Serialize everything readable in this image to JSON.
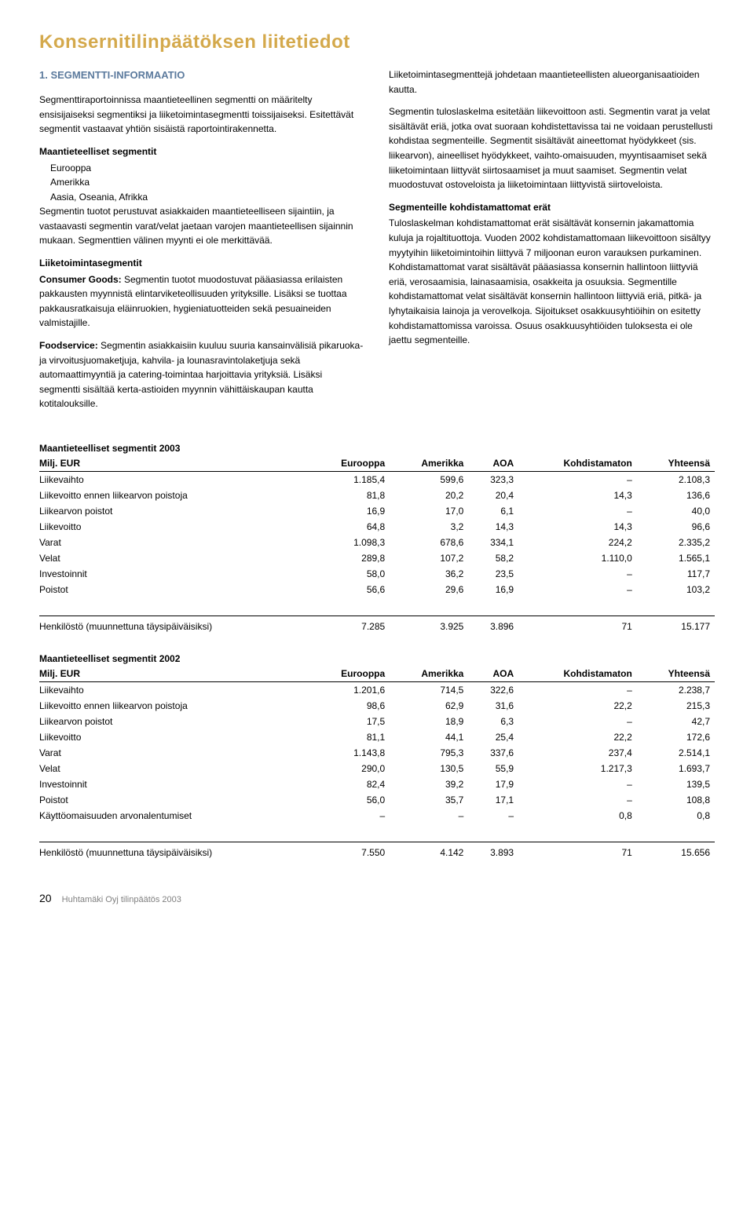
{
  "page_title": "Konsernitilinpäätöksen liitetiedot",
  "section_title": "1. SEGMENTTI-INFORMAATIO",
  "left": {
    "p1": "Segmenttiraportoinnissa maantieteellinen segmentti on määritelty ensisijaiseksi segmentiksi ja liiketoimintasegmentti toissijaiseksi. Esitettävät segmentit vastaavat yhtiön sisäistä raportointirakennetta.",
    "h1": "Maantieteelliset segmentit",
    "li1": "Eurooppa",
    "li2": "Amerikka",
    "li3": "Aasia, Oseania, Afrikka",
    "p2": "Segmentin tuotot perustuvat asiakkaiden maantieteelliseen sijaintiin, ja vastaavasti segmentin varat/velat jaetaan varojen maantieteellisen sijainnin mukaan. Segmenttien välinen myynti ei ole merkittävää.",
    "h2": "Liiketoimintasegmentit",
    "b1": "Consumer Goods:",
    "p3": " Segmentin tuotot muodostuvat pääasiassa erilaisten pakkausten myynnistä elintarviketeollisuuden yrityksille. Lisäksi se tuottaa pakkausratkaisuja eläinruokien, hygieniatuotteiden sekä pesuaineiden valmistajille.",
    "b2": "Foodservice:",
    "p4": " Segmentin asiakkaisiin kuuluu suuria kansainvälisiä pikaruoka- ja virvoitusjuomaketjuja, kahvila- ja lounasravintolaketjuja sekä automaattimyyntiä ja catering-toimintaa harjoittavia yrityksiä. Lisäksi segmentti sisältää kerta-astioiden myynnin vähittäiskaupan kautta kotitalouksille."
  },
  "right": {
    "p1": "Liiketoimintasegmenttejä johdetaan maantieteellisten alueorganisaatioiden kautta.",
    "p2": "Segmentin tuloslaskelma esitetään liikevoittoon asti. Segmentin varat ja velat sisältävät eriä, jotka ovat suoraan kohdistettavissa tai ne voidaan perustellusti kohdistaa segmenteille. Segmentit sisältävät aineettomat hyödykkeet (sis. liikearvon), aineelliset hyödykkeet, vaihto-omaisuuden, myyntisaamiset sekä liiketoimintaan liittyvät siirtosaamiset ja muut saamiset. Segmentin velat muodostuvat ostoveloista ja liiketoimintaan liittyvistä siirtoveloista.",
    "h1": "Segmenteille kohdistamattomat erät",
    "p3": "Tuloslaskelman kohdistamattomat erät sisältävät konsernin jakamattomia kuluja ja rojaltituottoja. Vuoden 2002 kohdistamattomaan liikevoittoon sisältyy myytyihin liiketoimintoihin liittyvä 7 miljoonan euron varauksen purkaminen. Kohdistamattomat varat sisältävät pääasiassa konsernin hallintoon liittyviä eriä, verosaamisia, lainasaamisia, osakkeita ja osuuksia. Segmentille kohdistamattomat velat sisältävät konsernin hallintoon liittyviä eriä, pitkä- ja lyhytaikaisia lainoja ja verovelkoja. Sijoitukset osakkuusyhtiöihin on esitetty kohdistamattomissa varoissa. Osuus osakkuusyhtiöiden tuloksesta ei ole jaettu segmenteille."
  },
  "tables": {
    "columns": [
      "Milj. EUR",
      "Eurooppa",
      "Amerikka",
      "AOA",
      "Kohdistamaton",
      "Yhteensä"
    ],
    "t2003": {
      "title": "Maantieteelliset segmentit 2003",
      "rows": [
        [
          "Liikevaihto",
          "1.185,4",
          "599,6",
          "323,3",
          "–",
          "2.108,3"
        ],
        [
          "Liikevoitto ennen liikearvon poistoja",
          "81,8",
          "20,2",
          "20,4",
          "14,3",
          "136,6"
        ],
        [
          "Liikearvon poistot",
          "16,9",
          "17,0",
          "6,1",
          "–",
          "40,0"
        ],
        [
          "Liikevoitto",
          "64,8",
          "3,2",
          "14,3",
          "14,3",
          "96,6"
        ],
        [
          "Varat",
          "1.098,3",
          "678,6",
          "334,1",
          "224,2",
          "2.335,2"
        ],
        [
          "Velat",
          "289,8",
          "107,2",
          "58,2",
          "1.110,0",
          "1.565,1"
        ],
        [
          "Investoinnit",
          "58,0",
          "36,2",
          "23,5",
          "–",
          "117,7"
        ],
        [
          "Poistot",
          "56,6",
          "29,6",
          "16,9",
          "–",
          "103,2"
        ]
      ],
      "footer_row": [
        "Henkilöstö (muunnettuna täysipäiväisiksi)",
        "7.285",
        "3.925",
        "3.896",
        "71",
        "15.177"
      ]
    },
    "t2002": {
      "title": "Maantieteelliset segmentit 2002",
      "rows": [
        [
          "Liikevaihto",
          "1.201,6",
          "714,5",
          "322,6",
          "–",
          "2.238,7"
        ],
        [
          "Liikevoitto ennen liikearvon poistoja",
          "98,6",
          "62,9",
          "31,6",
          "22,2",
          "215,3"
        ],
        [
          "Liikearvon poistot",
          "17,5",
          "18,9",
          "6,3",
          "–",
          "42,7"
        ],
        [
          "Liikevoitto",
          "81,1",
          "44,1",
          "25,4",
          "22,2",
          "172,6"
        ],
        [
          "Varat",
          "1.143,8",
          "795,3",
          "337,6",
          "237,4",
          "2.514,1"
        ],
        [
          "Velat",
          "290,0",
          "130,5",
          "55,9",
          "1.217,3",
          "1.693,7"
        ],
        [
          "Investoinnit",
          "82,4",
          "39,2",
          "17,9",
          "–",
          "139,5"
        ],
        [
          "Poistot",
          "56,0",
          "35,7",
          "17,1",
          "–",
          "108,8"
        ],
        [
          "Käyttöomaisuuden arvonalentumiset",
          "–",
          "–",
          "–",
          "0,8",
          "0,8"
        ]
      ],
      "footer_row": [
        "Henkilöstö (muunnettuna täysipäiväisiksi)",
        "7.550",
        "4.142",
        "3.893",
        "71",
        "15.656"
      ]
    }
  },
  "footer": {
    "page_number": "20",
    "text": "Huhtamäki Oyj tilinpäätös 2003"
  },
  "colors": {
    "title": "#d4a94c",
    "section": "#5b7a9d",
    "text": "#000000",
    "footer": "#808080",
    "background": "#ffffff"
  }
}
